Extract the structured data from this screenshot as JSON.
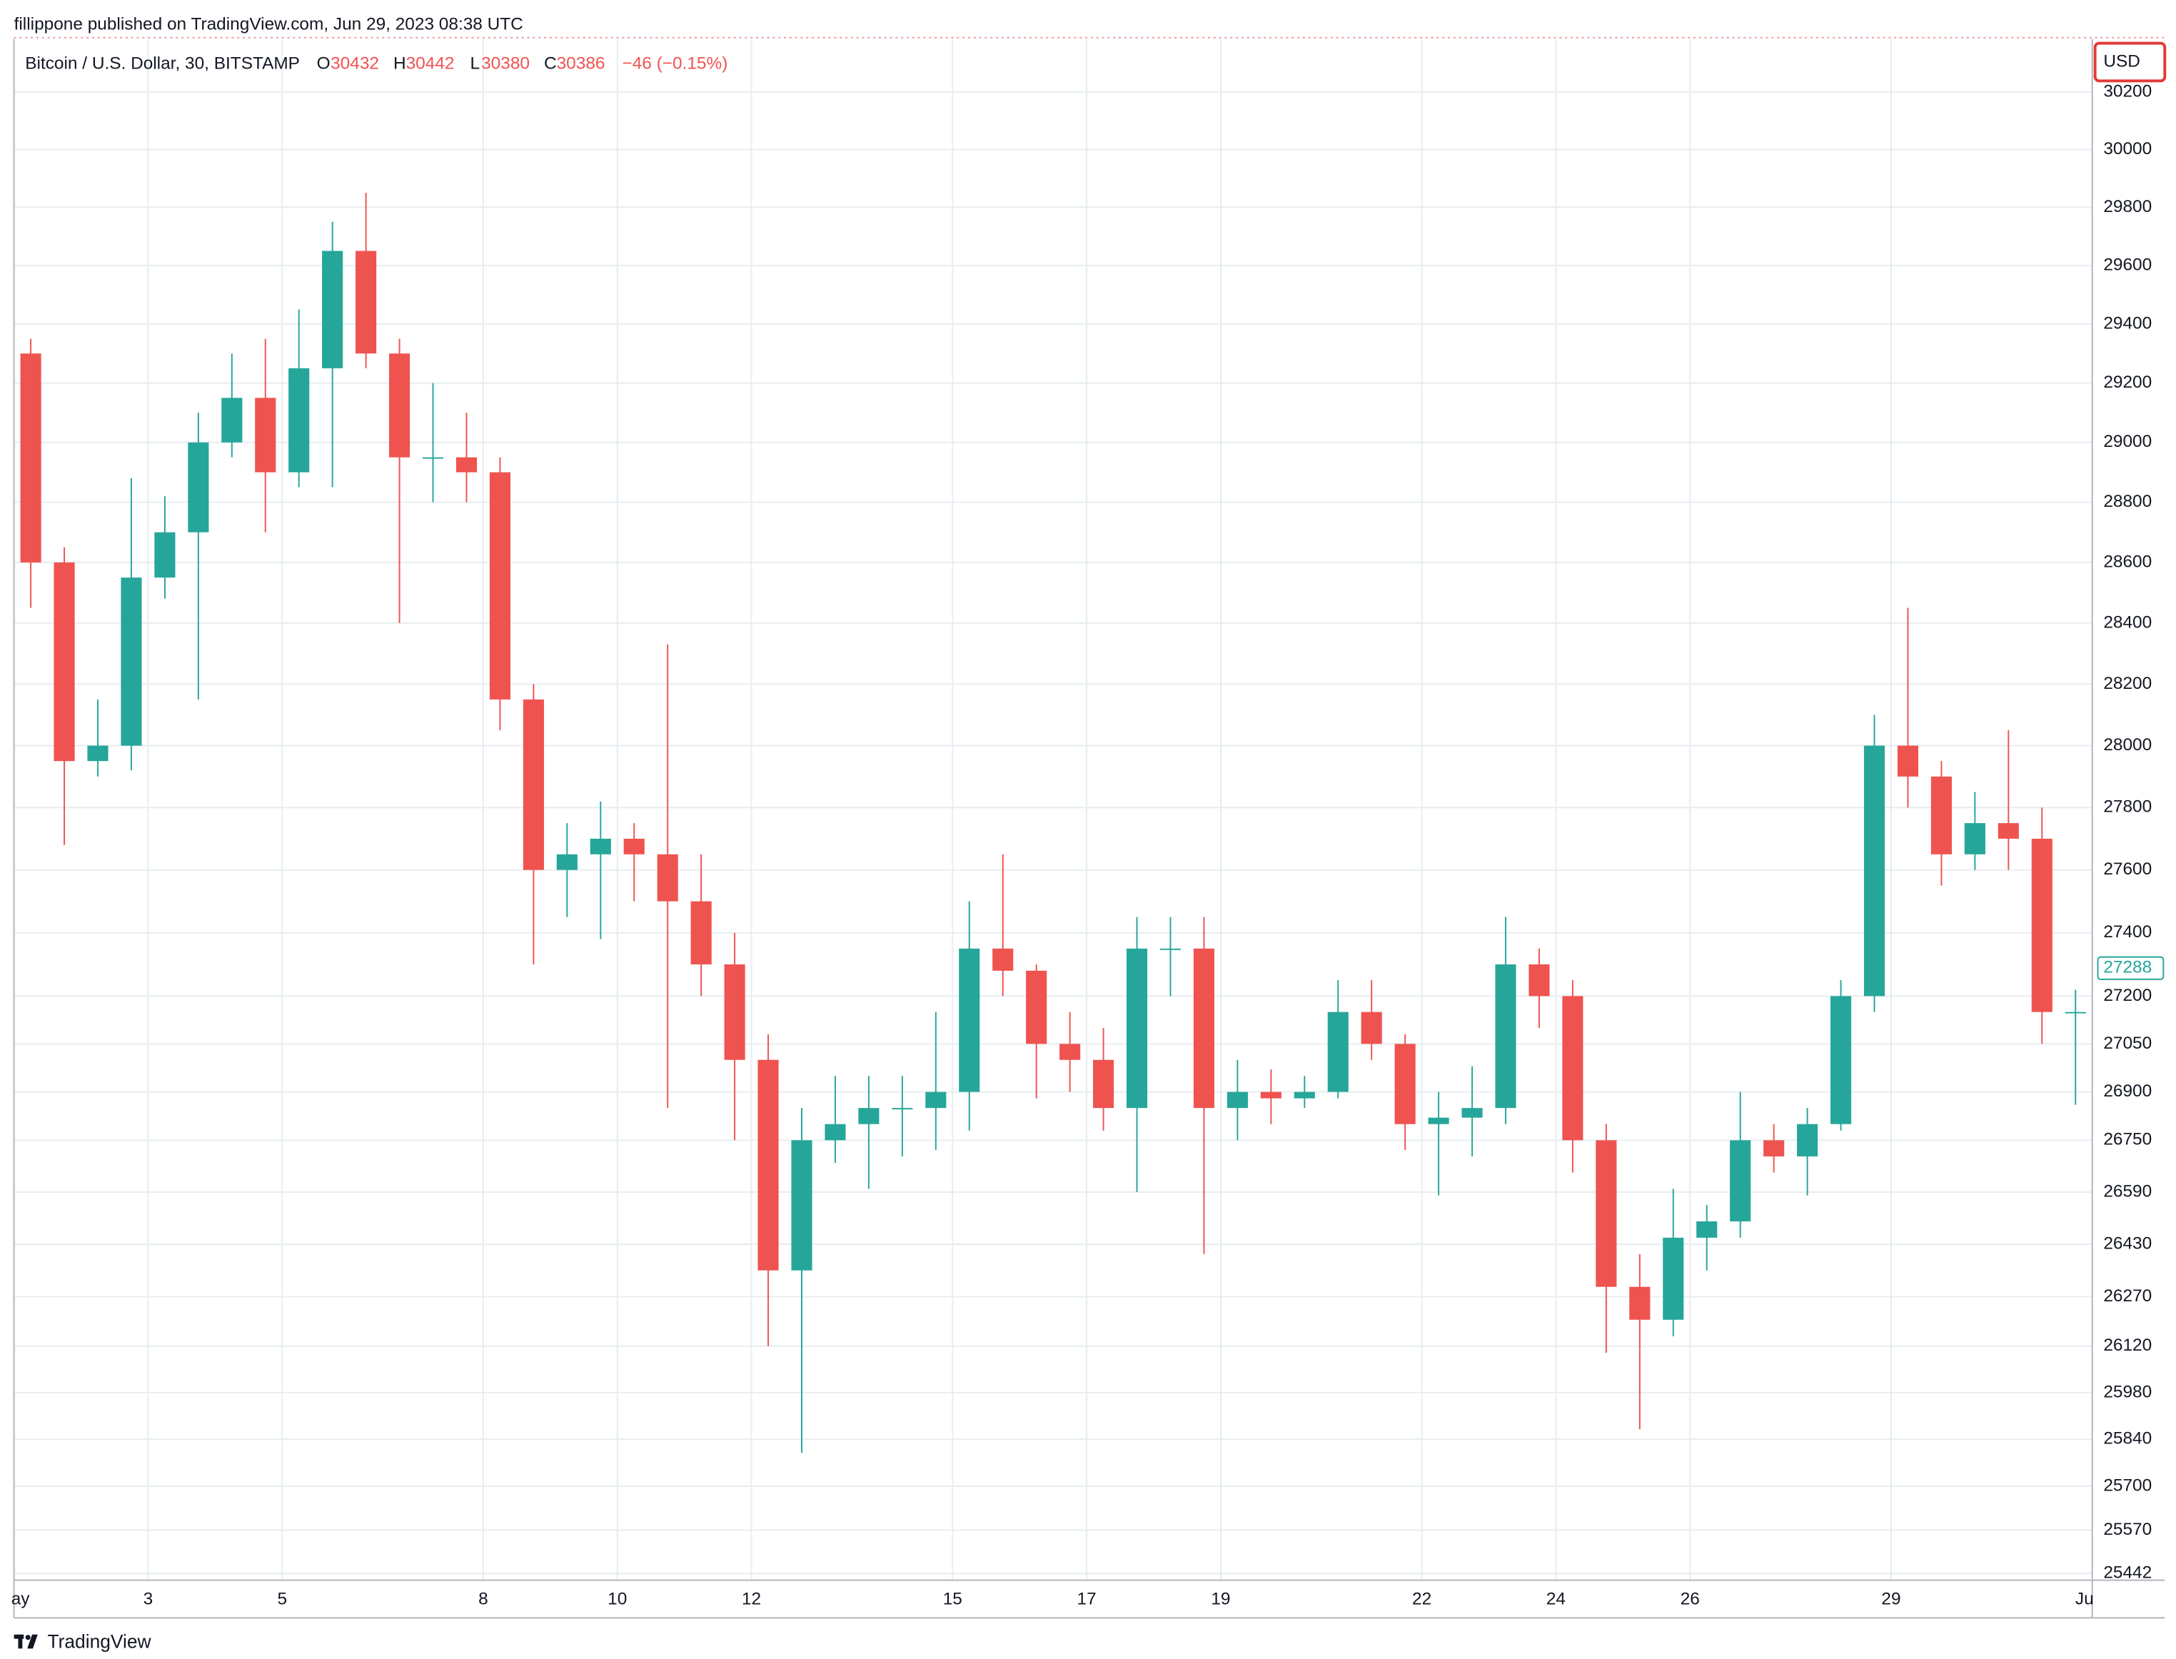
{
  "header": {
    "attribution": "fillippone published on TradingView.com, Jun 29, 2023 08:38 UTC",
    "symbol": "Bitcoin / U.S. Dollar, 30, BITSTAMP",
    "ohlc": [
      {
        "key": "O",
        "value": 30432
      },
      {
        "key": "H",
        "value": 30442
      },
      {
        "key": "L",
        "value": 30380
      },
      {
        "key": "C",
        "value": 30386
      }
    ],
    "change": "−46 (−0.15%)"
  },
  "footer": "TradingView",
  "chart_data": {
    "type": "candlestick",
    "currency": "USD",
    "log": true,
    "grid": true,
    "up_color": "#26a69a",
    "down_color": "#ef5350",
    "x": [
      1.25,
      1.75,
      2.25,
      2.75,
      3.25,
      3.75,
      4.25,
      4.75,
      5.25,
      5.75,
      6.25,
      6.75,
      7.25,
      7.75,
      8.25,
      8.75,
      9.25,
      9.75,
      10.25,
      10.75,
      11.25,
      11.75,
      12.25,
      12.75,
      13.25,
      13.75,
      14.25,
      14.75,
      15.25,
      15.75,
      16.25,
      16.75,
      17.25,
      17.75,
      18.25,
      18.75,
      19.25,
      19.75,
      20.25,
      20.75,
      21.25,
      21.75,
      22.25,
      22.75,
      23.25,
      23.75,
      24.25,
      24.75,
      25.25,
      25.75,
      26.25,
      26.75,
      27.25,
      27.75,
      28.25,
      28.75,
      29.25,
      29.75,
      30.25,
      30.75,
      31.25,
      31.75
    ],
    "open": [
      29300,
      28600,
      27950,
      28000,
      28550,
      28700,
      29000,
      29150,
      28900,
      29250,
      29650,
      29300,
      28950,
      28950,
      28900,
      28150,
      27600,
      27650,
      27700,
      27650,
      27500,
      27300,
      27000,
      26350,
      26750,
      26800,
      26850,
      26850,
      26900,
      27350,
      27280,
      27050,
      27000,
      26850,
      27350,
      27350,
      26850,
      26900,
      26880,
      26900,
      27150,
      27050,
      26800,
      26820,
      26850,
      27300,
      27200,
      26750,
      26300,
      26200,
      26450,
      26500,
      26750,
      26700,
      26800,
      27200,
      28000,
      27900,
      27650,
      27750,
      27700,
      27150
    ],
    "high": [
      29350,
      28650,
      28150,
      28880,
      28820,
      29100,
      29300,
      29350,
      29450,
      29750,
      29850,
      29350,
      29200,
      29100,
      28950,
      28200,
      27750,
      27820,
      27750,
      28330,
      27650,
      27400,
      27080,
      26850,
      26950,
      26950,
      26950,
      27150,
      27500,
      27650,
      27300,
      27150,
      27100,
      27450,
      27450,
      27450,
      27000,
      26970,
      26950,
      27250,
      27250,
      27080,
      26900,
      26980,
      27450,
      27350,
      27250,
      26800,
      26400,
      26600,
      26550,
      26900,
      26800,
      26850,
      27250,
      28100,
      28450,
      27950,
      27850,
      28050,
      27800,
      27220
    ],
    "low": [
      28450,
      27680,
      27900,
      27920,
      28480,
      28150,
      28950,
      28700,
      28850,
      28850,
      29250,
      28400,
      28800,
      28800,
      28050,
      27300,
      27450,
      27380,
      27500,
      26850,
      27200,
      26750,
      26120,
      25800,
      26680,
      26600,
      26700,
      26720,
      26780,
      27200,
      26880,
      26900,
      26780,
      26590,
      27200,
      26400,
      26750,
      26800,
      26850,
      26880,
      27000,
      26720,
      26580,
      26700,
      26800,
      27100,
      26650,
      26100,
      25870,
      26150,
      26350,
      26450,
      26650,
      26580,
      26780,
      27150,
      27800,
      27550,
      27600,
      27600,
      27050,
      26860
    ],
    "close": [
      28600,
      27950,
      28000,
      28550,
      28700,
      29000,
      29150,
      28900,
      29250,
      29650,
      29300,
      28950,
      28950,
      28900,
      28150,
      27600,
      27650,
      27700,
      27650,
      27500,
      27300,
      27000,
      26350,
      26750,
      26800,
      26850,
      26850,
      26900,
      27350,
      27280,
      27050,
      27000,
      26850,
      27350,
      27350,
      26850,
      26900,
      26880,
      26900,
      27150,
      27050,
      26800,
      26820,
      26850,
      27300,
      27200,
      26750,
      26300,
      26200,
      26450,
      26500,
      26750,
      26700,
      26800,
      27200,
      28000,
      27900,
      27650,
      27750,
      27700,
      27150,
      27150
    ],
    "last_price": 27288,
    "xlim": [
      1,
      32
    ],
    "xticks": [
      {
        "value": 1,
        "label": "ay"
      },
      {
        "value": 3,
        "label": "3"
      },
      {
        "value": 5,
        "label": "5"
      },
      {
        "value": 8,
        "label": "8"
      },
      {
        "value": 10,
        "label": "10"
      },
      {
        "value": 12,
        "label": "12"
      },
      {
        "value": 15,
        "label": "15"
      },
      {
        "value": 17,
        "label": "17"
      },
      {
        "value": 19,
        "label": "19"
      },
      {
        "value": 22,
        "label": "22"
      },
      {
        "value": 24,
        "label": "24"
      },
      {
        "value": 26,
        "label": "26"
      },
      {
        "value": 29,
        "label": "29"
      },
      {
        "value": 32,
        "label": "Ju"
      }
    ],
    "ylim": [
      25422,
      30386
    ],
    "yticks": [
      30200,
      30000,
      29800,
      29600,
      29400,
      29200,
      29000,
      28800,
      28600,
      28400,
      28200,
      28000,
      27800,
      27600,
      27400,
      27200,
      27050,
      26900,
      26750,
      26590,
      26430,
      26270,
      26120,
      25980,
      25840,
      25700,
      25570,
      25442
    ]
  }
}
